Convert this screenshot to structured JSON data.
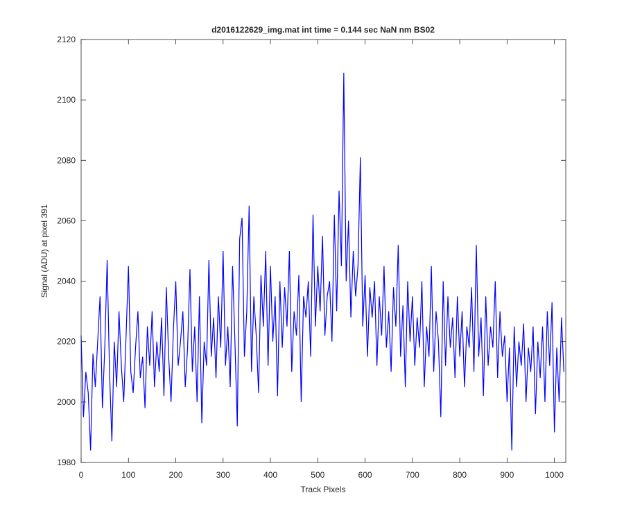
{
  "chart_data": {
    "type": "line",
    "title": "d2016122629_img.mat int time = 0.144 sec  NaN nm BS02",
    "x_label": "Track Pixels",
    "y_label": "Signal (ADU) at pixel 391",
    "xlim": [
      0,
      1024
    ],
    "ylim": [
      1980,
      2120
    ],
    "xticks": [
      0,
      100,
      200,
      300,
      400,
      500,
      600,
      700,
      800,
      900,
      1000
    ],
    "yticks": [
      1980,
      2000,
      2020,
      2040,
      2060,
      2080,
      2100,
      2120
    ],
    "grid": false,
    "series": [
      {
        "color": "#0000ff",
        "x": [
          0,
          5,
          10,
          15,
          20,
          25,
          30,
          35,
          40,
          45,
          50,
          55,
          60,
          65,
          70,
          75,
          80,
          85,
          90,
          95,
          100,
          105,
          110,
          115,
          120,
          125,
          130,
          135,
          140,
          145,
          150,
          155,
          160,
          165,
          170,
          175,
          180,
          185,
          190,
          195,
          200,
          205,
          210,
          215,
          220,
          225,
          230,
          235,
          240,
          245,
          250,
          255,
          260,
          265,
          270,
          275,
          280,
          285,
          290,
          295,
          300,
          305,
          310,
          315,
          320,
          325,
          330,
          335,
          340,
          345,
          350,
          355,
          360,
          365,
          370,
          375,
          380,
          385,
          390,
          395,
          400,
          405,
          410,
          415,
          420,
          425,
          430,
          435,
          440,
          445,
          450,
          455,
          460,
          465,
          470,
          475,
          480,
          485,
          490,
          495,
          500,
          505,
          510,
          515,
          520,
          525,
          530,
          535,
          540,
          545,
          550,
          555,
          560,
          565,
          570,
          575,
          580,
          585,
          590,
          595,
          600,
          605,
          610,
          615,
          620,
          625,
          630,
          635,
          640,
          645,
          650,
          655,
          660,
          665,
          670,
          675,
          680,
          685,
          690,
          695,
          700,
          705,
          710,
          715,
          720,
          725,
          730,
          735,
          740,
          745,
          750,
          755,
          760,
          765,
          770,
          775,
          780,
          785,
          790,
          795,
          800,
          805,
          810,
          815,
          820,
          825,
          830,
          835,
          840,
          845,
          850,
          855,
          860,
          865,
          870,
          875,
          880,
          885,
          890,
          895,
          900,
          905,
          910,
          915,
          920,
          925,
          930,
          935,
          940,
          945,
          950,
          955,
          960,
          965,
          970,
          975,
          980,
          985,
          990,
          995,
          1000,
          1005,
          1010,
          1015,
          1020
        ],
        "values": [
          2022,
          1995,
          2010,
          2003,
          1984,
          2016,
          2005,
          2020,
          2035,
          1998,
          2018,
          2047,
          2010,
          1987,
          2020,
          2005,
          2030,
          2012,
          2000,
          2022,
          2045,
          2010,
          2003,
          2018,
          2030,
          2008,
          2015,
          1998,
          2025,
          2012,
          2030,
          2005,
          2020,
          2010,
          2028,
          2002,
          2038,
          2015,
          2000,
          2024,
          2040,
          2012,
          2020,
          2030,
          2005,
          2018,
          2044,
          2010,
          2025,
          2000,
          2035,
          1993,
          2020,
          2012,
          2047,
          2015,
          2028,
          2008,
          2035,
          2018,
          2050,
          2012,
          2025,
          2005,
          2045,
          2020,
          1992,
          2054,
          2061,
          2015,
          2030,
          2065,
          2010,
          2035,
          2022,
          2003,
          2042,
          2025,
          2050,
          2012,
          2045,
          2020,
          2035,
          2002,
          2040,
          2018,
          2038,
          2025,
          2050,
          2010,
          2030,
          2022,
          2042,
          2000,
          2035,
          2028,
          2040,
          2015,
          2062,
          2025,
          2045,
          2030,
          2055,
          2022,
          2035,
          2040,
          2020,
          2062,
          2030,
          2070,
          2045,
          2109,
          2040,
          2060,
          2028,
          2050,
          2035,
          2045,
          2081,
          2025,
          2042,
          2015,
          2038,
          2028,
          2040,
          2012,
          2035,
          2022,
          2045,
          2018,
          2030,
          2010,
          2038,
          2025,
          2052,
          2015,
          2032,
          2005,
          2040,
          2020,
          2035,
          2012,
          2028,
          2018,
          2040,
          2005,
          2025,
          2015,
          2045,
          2010,
          2030,
          2020,
          1995,
          2040,
          2012,
          2035,
          2018,
          2028,
          2008,
          2035,
          2015,
          2030,
          2005,
          2025,
          2018,
          2038,
          2010,
          2052,
          2015,
          2028,
          2002,
          2035,
          2012,
          2025,
          2018,
          2040,
          2008,
          2030,
          2015,
          2022,
          2000,
          2018,
          1984,
          2025,
          2005,
          2020,
          2012,
          2026,
          2000,
          2018,
          2010,
          2025,
          1996,
          2020,
          2008,
          2025,
          2000,
          2030,
          2012,
          2033,
          1990,
          2018,
          2000,
          2028,
          2010
        ]
      }
    ]
  }
}
